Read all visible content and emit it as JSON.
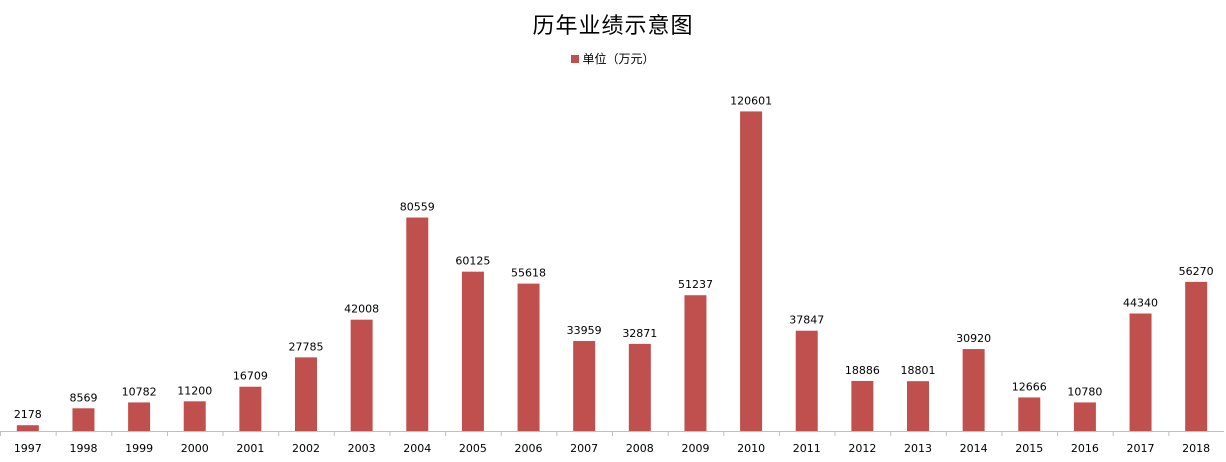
{
  "chart_data": {
    "type": "bar",
    "title": "历年业绩示意图",
    "categories": [
      "1997",
      "1998",
      "1999",
      "2000",
      "2001",
      "2002",
      "2003",
      "2004",
      "2005",
      "2006",
      "2007",
      "2008",
      "2009",
      "2010",
      "2011",
      "2012",
      "2013",
      "2014",
      "2015",
      "2016",
      "2017",
      "2018"
    ],
    "series": [
      {
        "name": "单位（万元）",
        "values": [
          2178,
          8569,
          10782,
          11200,
          16709,
          27785,
          42008,
          80559,
          60125,
          55618,
          33959,
          32871,
          51237,
          120601,
          37847,
          18886,
          18801,
          30920,
          12666,
          10780,
          44340,
          56270
        ]
      }
    ],
    "xlabel": "",
    "ylabel": "",
    "ylim": [
      0,
      140000
    ],
    "grid": false,
    "legend_position": "top-center",
    "bar_color": "#c0504d",
    "data_labels": true
  }
}
